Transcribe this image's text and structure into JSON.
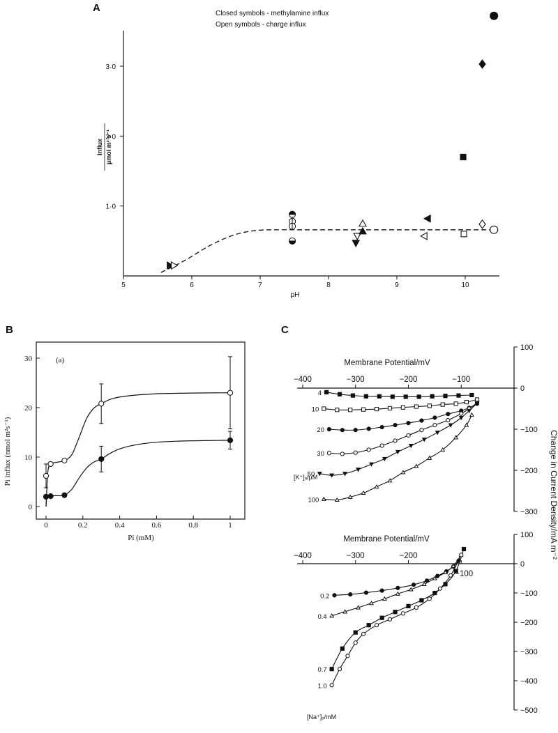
{
  "chart_data": [
    {
      "panel": "A",
      "type": "scatter",
      "legend_lines": [
        "Closed symbols - methylamine influx",
        "Open symbols  - charge influx"
      ],
      "xlabel": "pH",
      "ylabel": [
        "Influx",
        "µmol m² s⁻¹"
      ],
      "xlim": [
        5,
        10.5
      ],
      "ylim": [
        0,
        3.5
      ],
      "x_ticks": [
        5,
        6,
        7,
        8,
        9,
        10
      ],
      "x_tick_labels": [
        "5",
        "6",
        "7",
        "8",
        "9",
        "10"
      ],
      "y_ticks": [
        1,
        2,
        3
      ],
      "y_tick_labels": [
        "1·0",
        "2·0",
        "3·0"
      ],
      "points": [
        {
          "x": 5.68,
          "y": 0.15,
          "symbol": "triangle-right",
          "filled": true
        },
        {
          "x": 5.74,
          "y": 0.15,
          "symbol": "triangle-right",
          "filled": false
        },
        {
          "x": 7.47,
          "y": 0.88,
          "symbol": "half-circle-top",
          "filled": true
        },
        {
          "x": 7.47,
          "y": 0.78,
          "symbol": "half-circle-right",
          "filled": false
        },
        {
          "x": 7.47,
          "y": 0.71,
          "symbol": "half-circle-left",
          "filled": false
        },
        {
          "x": 7.47,
          "y": 0.5,
          "symbol": "half-circle-bottom",
          "filled": true
        },
        {
          "x": 8.42,
          "y": 0.57,
          "symbol": "triangle-down",
          "filled": false
        },
        {
          "x": 8.4,
          "y": 0.47,
          "symbol": "triangle-down",
          "filled": true
        },
        {
          "x": 8.5,
          "y": 0.75,
          "symbol": "triangle-up",
          "filled": false
        },
        {
          "x": 8.5,
          "y": 0.64,
          "symbol": "triangle-up",
          "filled": true
        },
        {
          "x": 9.45,
          "y": 0.82,
          "symbol": "triangle-left",
          "filled": true
        },
        {
          "x": 9.4,
          "y": 0.57,
          "symbol": "triangle-left",
          "filled": false
        },
        {
          "x": 9.97,
          "y": 1.7,
          "symbol": "square",
          "filled": true
        },
        {
          "x": 9.98,
          "y": 0.6,
          "symbol": "square",
          "filled": false
        },
        {
          "x": 10.25,
          "y": 3.03,
          "symbol": "diamond",
          "filled": true
        },
        {
          "x": 10.25,
          "y": 0.74,
          "symbol": "diamond",
          "filled": false
        },
        {
          "x": 10.42,
          "y": 3.72,
          "symbol": "circle",
          "filled": true
        },
        {
          "x": 10.42,
          "y": 0.66,
          "symbol": "circle",
          "filled": false
        }
      ],
      "fit_curve": {
        "style": "dashed",
        "x": [
          5.55,
          5.8,
          6.0,
          6.2,
          6.4,
          6.6,
          6.8,
          7.0,
          7.2,
          7.6,
          8.0,
          9.0,
          10.0,
          10.42
        ],
        "y": [
          0.05,
          0.17,
          0.28,
          0.4,
          0.5,
          0.58,
          0.63,
          0.655,
          0.66,
          0.66,
          0.66,
          0.66,
          0.66,
          0.66
        ]
      }
    },
    {
      "panel": "B",
      "type": "line",
      "annotation": "(a)",
      "xlabel": "Pi (mM)",
      "ylabel": "Pi influx (nmol m²s⁻¹)",
      "xlim": [
        -0.04,
        1.04
      ],
      "ylim": [
        0,
        31
      ],
      "x_ticks": [
        0,
        0.2,
        0.4,
        0.6,
        0.8,
        1
      ],
      "x_tick_labels": [
        "0",
        "0.2",
        "0.4",
        "0.6",
        "0.8",
        "1"
      ],
      "y_ticks": [
        0,
        10,
        20,
        30
      ],
      "y_tick_labels": [
        "0",
        "10",
        "20",
        "30"
      ],
      "series": [
        {
          "filled": false,
          "x": [
            0,
            0.025,
            0.1,
            0.3,
            1.0
          ],
          "y": [
            6.2,
            8.6,
            9.3,
            20.8,
            23.0
          ],
          "err": [
            2.4,
            0,
            0,
            4.0,
            7.3
          ],
          "curve_x": [
            0,
            0.01,
            0.025,
            0.05,
            0.1,
            0.14,
            0.18,
            0.22,
            0.26,
            0.3,
            0.36,
            0.45,
            0.6,
            0.8,
            1.0
          ],
          "curve_y": [
            0,
            7.0,
            8.6,
            8.9,
            9.3,
            10.5,
            14.0,
            17.8,
            19.9,
            20.8,
            21.8,
            22.4,
            22.8,
            22.95,
            23.0
          ]
        },
        {
          "filled": true,
          "x": [
            0,
            0.025,
            0.1,
            0.3,
            1.0
          ],
          "y": [
            2.0,
            2.1,
            2.3,
            9.6,
            13.4
          ],
          "err": [
            0,
            0,
            0,
            2.6,
            1.8
          ],
          "curve_x": [
            0,
            0.005,
            0.025,
            0.05,
            0.1,
            0.14,
            0.18,
            0.22,
            0.26,
            0.3,
            0.36,
            0.45,
            0.6,
            0.8,
            1.0
          ],
          "curve_y": [
            0,
            1.8,
            2.1,
            2.2,
            2.3,
            3.5,
            5.8,
            7.8,
            9.0,
            9.6,
            11.0,
            12.2,
            13.0,
            13.3,
            13.4
          ]
        }
      ]
    },
    {
      "panel": "C",
      "type": "line",
      "xlabel": "Membrane Potential/mV",
      "ylabel": "Change in Current Density/mA m⁻²",
      "series_label": "[K⁺]ₒ/µM",
      "xlim": [
        -400,
        0
      ],
      "ylim": [
        -300,
        100
      ],
      "x_ticks": [
        -400,
        -300,
        -200,
        -100
      ],
      "x_tick_labels": [
        "−400",
        "−300",
        "−200",
        "−100"
      ],
      "y_ticks": [
        100,
        0,
        -100,
        -200,
        -300
      ],
      "y_tick_labels": [
        "100",
        "0",
        "−100",
        "−200",
        "−300"
      ],
      "series": [
        {
          "name": "4",
          "marker": "square-filled",
          "x": [
            -355,
            -330,
            -305,
            -280,
            -255,
            -230,
            -205,
            -180,
            -155,
            -130,
            -105,
            -80
          ],
          "y": [
            -10,
            -15,
            -18,
            -20,
            -20,
            -21,
            -21,
            -21,
            -20,
            -19,
            -18,
            -17
          ]
        },
        {
          "name": "10",
          "marker": "square-open",
          "x": [
            -360,
            -335,
            -310,
            -285,
            -260,
            -235,
            -210,
            -185,
            -160,
            -135,
            -110,
            -90,
            -70
          ],
          "y": [
            -50,
            -53,
            -53,
            -52,
            -51,
            -49,
            -47,
            -45,
            -43,
            -40,
            -38,
            -34,
            -28
          ]
        },
        {
          "name": "20",
          "marker": "circle-filled",
          "x": [
            -350,
            -325,
            -300,
            -275,
            -250,
            -225,
            -200,
            -175,
            -150,
            -125,
            -100,
            -85,
            -70
          ],
          "y": [
            -100,
            -102,
            -102,
            -99,
            -95,
            -90,
            -85,
            -79,
            -72,
            -63,
            -55,
            -48,
            -38
          ]
        },
        {
          "name": "30",
          "marker": "circle-open",
          "x": [
            -350,
            -325,
            -300,
            -275,
            -250,
            -225,
            -200,
            -175,
            -150,
            -125,
            -100,
            -85,
            -70
          ],
          "y": [
            -158,
            -160,
            -157,
            -150,
            -140,
            -128,
            -115,
            -102,
            -90,
            -78,
            -62,
            -50,
            -36
          ]
        },
        {
          "name": "50",
          "marker": "triangle-down-filled",
          "x": [
            -368,
            -345,
            -320,
            -295,
            -270,
            -245,
            -220,
            -195,
            -170,
            -145,
            -120,
            -100,
            -85,
            -70
          ],
          "y": [
            -208,
            -212,
            -208,
            -198,
            -185,
            -172,
            -155,
            -140,
            -125,
            -108,
            -90,
            -72,
            -55,
            -37
          ]
        },
        {
          "name": "100",
          "marker": "triangle-up-open",
          "x": [
            -360,
            -335,
            -310,
            -285,
            -260,
            -235,
            -210,
            -185,
            -160,
            -135,
            -110,
            -90,
            -80
          ],
          "y": [
            -270,
            -272,
            -265,
            -255,
            -240,
            -225,
            -205,
            -190,
            -170,
            -150,
            -120,
            -90,
            -65
          ]
        }
      ]
    },
    {
      "panel": "C",
      "type": "line",
      "xlabel": "Membrane Potential/mV",
      "ylabel": "Change in Current Density/mA m⁻²",
      "series_label": "[Na⁺]ₒ/mM",
      "xlim": [
        -400,
        0
      ],
      "ylim": [
        -500,
        100
      ],
      "x_ticks": [
        -400,
        -300,
        -200,
        -100
      ],
      "x_tick_labels": [
        "−400",
        "−300",
        "−200",
        "−100"
      ],
      "y_ticks": [
        100,
        0,
        -100,
        -200,
        -300,
        -400,
        -500
      ],
      "y_tick_labels": [
        "100",
        "0",
        "−100",
        "−200",
        "−300",
        "−400",
        "−500"
      ],
      "series": [
        {
          "name": "0.2",
          "marker": "circle-filled",
          "x": [
            -340,
            -310,
            -280,
            -250,
            -220,
            -190,
            -165,
            -145,
            -128,
            -115,
            -105
          ],
          "y": [
            -108,
            -105,
            -99,
            -92,
            -83,
            -72,
            -58,
            -42,
            -26,
            -10,
            10
          ]
        },
        {
          "name": "0.4",
          "marker": "triangle-up-open",
          "x": [
            -345,
            -320,
            -295,
            -270,
            -245,
            -220,
            -195,
            -170,
            -150,
            -130,
            -115,
            -100
          ],
          "y": [
            -178,
            -164,
            -150,
            -135,
            -120,
            -103,
            -88,
            -70,
            -50,
            -30,
            -8,
            30
          ]
        },
        {
          "name": "0.7",
          "marker": "square-filled",
          "x": [
            -345,
            -325,
            -300,
            -275,
            -250,
            -225,
            -200,
            -175,
            -150,
            -130,
            -110,
            -95
          ],
          "y": [
            -360,
            -290,
            -235,
            -210,
            -185,
            -165,
            -145,
            -125,
            -100,
            -70,
            -25,
            50
          ]
        },
        {
          "name": "1.0",
          "marker": "circle-open",
          "x": [
            -345,
            -330,
            -315,
            -300,
            -285,
            -260,
            -235,
            -210,
            -185,
            -160,
            -140,
            -120,
            -100
          ],
          "y": [
            -415,
            -360,
            -315,
            -270,
            -240,
            -210,
            -190,
            -170,
            -150,
            -120,
            -85,
            -40,
            30
          ]
        }
      ]
    }
  ]
}
